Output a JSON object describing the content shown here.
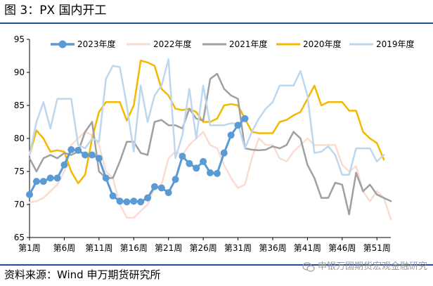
{
  "title": "图 3：PX 国内开工",
  "source": "资料来源：Wind 申万期货研究所",
  "watermark": {
    "text": "申银万国期货宏观金融研究",
    "icon": "wechat-icon"
  },
  "chart_data": {
    "type": "line",
    "title": "图 3：PX 国内开工",
    "xlabel": "",
    "ylabel": "",
    "ylim": [
      65,
      95
    ],
    "yticks": [
      65,
      70,
      75,
      80,
      85,
      90,
      95
    ],
    "xlim": [
      1,
      53
    ],
    "xtick_values": [
      1,
      6,
      11,
      16,
      21,
      26,
      31,
      36,
      41,
      46,
      51
    ],
    "xtick_labels": [
      "第1周",
      "第6周",
      "第11周",
      "第16周",
      "第21周",
      "第26周",
      "第31周",
      "第36周",
      "第41周",
      "第46周",
      "第51周"
    ],
    "grid": false,
    "legend_position": "top",
    "series": [
      {
        "name": "2023年度",
        "color": "#5b9bd5",
        "markers": true,
        "values": [
          71.5,
          73.5,
          73.5,
          74,
          74,
          76,
          78.3,
          78.2,
          77.5,
          77.5,
          77,
          74,
          71.3,
          70.5,
          70.4,
          70.5,
          70.4,
          71,
          72.7,
          72.5,
          71.8,
          73.8,
          77.3,
          76.2,
          75.5,
          76.5,
          74.8,
          74.7,
          77.8,
          80.5,
          82,
          83
        ]
      },
      {
        "name": "2022年度",
        "color": "#fadcd0",
        "markers": false,
        "values": [
          70.3,
          70.5,
          71,
          72,
          73,
          75,
          79,
          80,
          81,
          80.5,
          79,
          75,
          74,
          70,
          68,
          68,
          69,
          70,
          72.5,
          73,
          77,
          78,
          77.5,
          79,
          80,
          81,
          79,
          78.5,
          76,
          74,
          72.5,
          73,
          77,
          80,
          79,
          79,
          77,
          76.5,
          78,
          79,
          80,
          79,
          79,
          79,
          79,
          76,
          75,
          75.8,
          72,
          70.5,
          72,
          71,
          67.8
        ]
      },
      {
        "name": "2021年度",
        "color": "#a0a0a0",
        "markers": false,
        "values": [
          77,
          75,
          77,
          77.5,
          77,
          77.8,
          77.5,
          78,
          81,
          82.5,
          75,
          74,
          74,
          76.5,
          79.5,
          79.5,
          77.8,
          77.5,
          82.5,
          82.8,
          82,
          82,
          81.5,
          84.5,
          83,
          82.7,
          89,
          89.8,
          87.5,
          86.5,
          86,
          78.5,
          78.3,
          78.2,
          78.3,
          78.8,
          78.5,
          79,
          81,
          80,
          76,
          74,
          71,
          71,
          73.3,
          73,
          68.5,
          74.8,
          72,
          73,
          71.5,
          71,
          70.5
        ]
      },
      {
        "name": "2020年度",
        "color": "#f5b800",
        "markers": false,
        "values": [
          77.5,
          81.2,
          80,
          78,
          78.2,
          78,
          75,
          73.2,
          74.5,
          80,
          84,
          85.5,
          85.5,
          85.5,
          82.7,
          85,
          91.8,
          91.5,
          91,
          87.5,
          86.5,
          84.5,
          84.3,
          84.5,
          84,
          82.5,
          82.5,
          83,
          85,
          85.2,
          85,
          83,
          81,
          80.8,
          80.8,
          80.8,
          82.5,
          82.8,
          83.5,
          84,
          86,
          88,
          85,
          85.5,
          85.5,
          85.5,
          84.2,
          84.2,
          81,
          80,
          79.3,
          76.8
        ]
      },
      {
        "name": "2019年度",
        "color": "#bdd7ee",
        "markers": false,
        "values": [
          77.5,
          82.5,
          85.5,
          81.5,
          86,
          86,
          86,
          79,
          78.5,
          80,
          79.5,
          89,
          91,
          90.8,
          85,
          78,
          88,
          82.5,
          86.5,
          88,
          92,
          77,
          80.5,
          87.5,
          80,
          88,
          82,
          82,
          82,
          82.3,
          82.2,
          78.5,
          81,
          83,
          84.5,
          85.5,
          88,
          88,
          88,
          90.2,
          86.5,
          77.8,
          78,
          78.8,
          77.5,
          74.5,
          74.5,
          78.5,
          78.5,
          78.5,
          76.5,
          77.5
        ]
      }
    ]
  }
}
